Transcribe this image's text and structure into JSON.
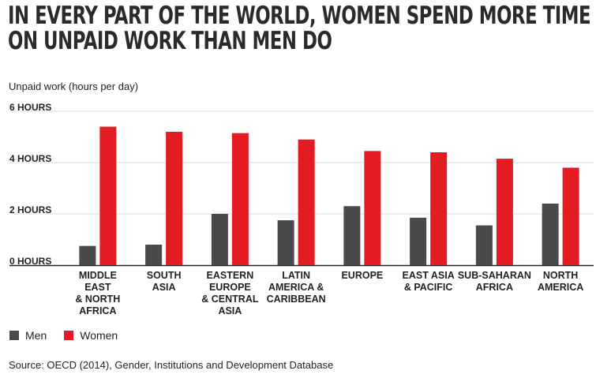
{
  "title": "IN EVERY PART OF THE WORLD, WOMEN SPEND MORE TIME ON UNPAID WORK THAN MEN DO",
  "source": "Source: OECD (2014), Gender, Institutions and Development Database",
  "colors": {
    "men": "#4a4a4a",
    "women": "#e31b23",
    "grid": "#dddddd",
    "axis": "#222222"
  },
  "chart_data": {
    "type": "bar",
    "ylabel": "Unpaid work (hours per day)",
    "ylim": [
      0,
      6
    ],
    "yticks": [
      0,
      2,
      4,
      6
    ],
    "ytick_labels": [
      "0 HOURS",
      "2 HOURS",
      "4 HOURS",
      "6 HOURS"
    ],
    "grid": true,
    "legend_position": "bottom-left",
    "categories": [
      [
        "MIDDLE",
        "EAST",
        "& NORTH",
        "AFRICA"
      ],
      [
        "SOUTH",
        "ASIA"
      ],
      [
        "EASTERN",
        "EUROPE",
        "& CENTRAL",
        "ASIA"
      ],
      [
        "LATIN",
        "AMERICA &",
        "CARIBBEAN"
      ],
      [
        "EUROPE"
      ],
      [
        "EAST ASIA",
        "& PACIFIC"
      ],
      [
        "SUB-SAHARAN",
        "AFRICA"
      ],
      [
        "NORTH",
        "AMERICA"
      ]
    ],
    "series": [
      {
        "name": "Men",
        "values": [
          0.75,
          0.8,
          2.0,
          1.75,
          2.3,
          1.85,
          1.55,
          2.4
        ]
      },
      {
        "name": "Women",
        "values": [
          5.4,
          5.2,
          5.15,
          4.9,
          4.45,
          4.4,
          4.15,
          3.8
        ]
      }
    ]
  }
}
